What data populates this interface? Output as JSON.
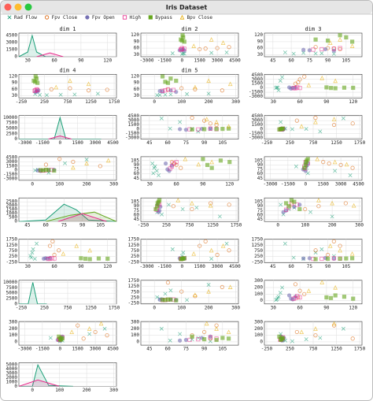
{
  "title": "Iris Dataset",
  "legend": [
    {
      "name": "Rad Flow",
      "color": "#1b9e77",
      "marker": "x"
    },
    {
      "name": "Fpv Close",
      "color": "#d95f02",
      "marker": "circle-open"
    },
    {
      "name": "Fpv Open",
      "color": "#7570b3",
      "marker": "circle"
    },
    {
      "name": "High",
      "color": "#e7298a",
      "marker": "square-open"
    },
    {
      "name": "Bypass",
      "color": "#66a61e",
      "marker": "square"
    },
    {
      "name": "Bpv Close",
      "color": "#e6ab02",
      "marker": "triangle-open"
    }
  ],
  "dims": [
    {
      "name": "dim 1",
      "lim": [
        20,
        130
      ],
      "ticks": [
        30,
        60,
        90,
        120
      ]
    },
    {
      "name": "dim 2",
      "lim": [
        -3500,
        4800
      ],
      "ticks": [
        -3000,
        -1500,
        0,
        1500,
        3000,
        4500
      ]
    },
    {
      "name": "dim 3",
      "lim": [
        38,
        118
      ],
      "ticks": [
        45,
        60,
        75,
        90,
        105
      ]
    },
    {
      "name": "dim 4",
      "lim": [
        -300,
        1800
      ],
      "ticks": [
        -250,
        250,
        750,
        1250,
        1750
      ]
    },
    {
      "name": "dim 5",
      "lim": [
        -50,
        310
      ],
      "ticks": [
        0,
        100,
        200,
        300
      ]
    }
  ],
  "density": [
    {
      "ylim": [
        0,
        5000
      ],
      "yticks": [
        0,
        1500,
        3000,
        4500
      ],
      "series": [
        {
          "class": 0,
          "x": [
            20,
            30,
            35,
            40,
            50,
            60
          ],
          "y": [
            0,
            1000,
            4500,
            1000,
            0,
            0
          ]
        },
        {
          "class": 3,
          "x": [
            40,
            55,
            70
          ],
          "y": [
            0,
            800,
            0
          ]
        }
      ]
    },
    {
      "ylim": [
        0,
        11000
      ],
      "yticks": [
        0,
        2500,
        5000,
        7500,
        10000
      ],
      "series": [
        {
          "class": 0,
          "x": [
            -3500,
            -500,
            0,
            500,
            3500
          ],
          "y": [
            0,
            0,
            10000,
            0,
            0
          ]
        },
        {
          "class": 3,
          "x": [
            -1000,
            0,
            1000
          ],
          "y": [
            0,
            1500,
            0
          ]
        }
      ]
    },
    {
      "ylim": [
        0,
        3000
      ],
      "yticks": [
        0,
        500,
        1000,
        1500,
        2000,
        2500
      ],
      "series": [
        {
          "class": 0,
          "x": [
            38,
            60,
            75,
            85,
            95,
            118
          ],
          "y": [
            0,
            200,
            2200,
            1500,
            200,
            0
          ]
        },
        {
          "class": 4,
          "x": [
            60,
            80,
            100,
            118
          ],
          "y": [
            0,
            800,
            1200,
            0
          ]
        },
        {
          "class": 3,
          "x": [
            70,
            90,
            110
          ],
          "y": [
            0,
            1000,
            0
          ]
        }
      ]
    },
    {
      "ylim": [
        0,
        11000
      ],
      "yticks": [
        0,
        2500,
        5000,
        7500,
        10000
      ],
      "series": [
        {
          "class": 0,
          "x": [
            -300,
            -100,
            0,
            100,
            300
          ],
          "y": [
            0,
            0,
            10000,
            0,
            0
          ]
        }
      ]
    },
    {
      "ylim": [
        0,
        5500
      ],
      "yticks": [
        0,
        1000,
        2000,
        3000,
        4000,
        5000
      ],
      "series": [
        {
          "class": 0,
          "x": [
            -50,
            0,
            20,
            60,
            150
          ],
          "y": [
            0,
            0,
            5000,
            200,
            0
          ]
        },
        {
          "class": 3,
          "x": [
            -50,
            20,
            100
          ],
          "y": [
            0,
            1500,
            0
          ]
        }
      ]
    }
  ],
  "observations": [
    {
      "class": 0,
      "values": [
        34,
        200,
        62,
        150,
        20
      ]
    },
    {
      "class": 0,
      "values": [
        36,
        -800,
        85,
        900,
        60
      ]
    },
    {
      "class": 0,
      "values": [
        38,
        2500,
        70,
        50,
        120
      ]
    },
    {
      "class": 0,
      "values": [
        33,
        0,
        95,
        300,
        10
      ]
    },
    {
      "class": 0,
      "values": [
        40,
        3800,
        55,
        1400,
        200
      ]
    },
    {
      "class": 0,
      "values": [
        35,
        100,
        80,
        600,
        40
      ]
    },
    {
      "class": 1,
      "values": [
        60,
        3000,
        90,
        400,
        150
      ]
    },
    {
      "class": 1,
      "values": [
        55,
        1500,
        100,
        1200,
        250
      ]
    },
    {
      "class": 1,
      "values": [
        65,
        4000,
        80,
        800,
        100
      ]
    },
    {
      "class": 1,
      "values": [
        58,
        2000,
        95,
        1600,
        50
      ]
    },
    {
      "class": 2,
      "values": [
        50,
        -200,
        75,
        100,
        30
      ]
    },
    {
      "class": 2,
      "values": [
        55,
        100,
        88,
        120,
        60
      ]
    },
    {
      "class": 2,
      "values": [
        52,
        0,
        70,
        80,
        20
      ]
    },
    {
      "class": 2,
      "values": [
        48,
        200,
        95,
        60,
        80
      ]
    },
    {
      "class": 3,
      "values": [
        55,
        -100,
        85,
        50,
        40
      ]
    },
    {
      "class": 3,
      "values": [
        57,
        200,
        95,
        100,
        70
      ]
    },
    {
      "class": 3,
      "values": [
        60,
        0,
        100,
        80,
        50
      ]
    },
    {
      "class": 3,
      "values": [
        53,
        -50,
        78,
        40,
        30
      ]
    },
    {
      "class": 4,
      "values": [
        95,
        0,
        90,
        50,
        40
      ]
    },
    {
      "class": 4,
      "values": [
        110,
        100,
        105,
        80,
        60
      ]
    },
    {
      "class": 4,
      "values": [
        100,
        -100,
        80,
        20,
        80
      ]
    },
    {
      "class": 4,
      "values": [
        120,
        50,
        100,
        60,
        30
      ]
    },
    {
      "class": 4,
      "values": [
        90,
        200,
        110,
        100,
        50
      ]
    },
    {
      "class": 5,
      "values": [
        100,
        2500,
        100,
        800,
        200
      ]
    },
    {
      "class": 5,
      "values": [
        85,
        3500,
        92,
        1200,
        280
      ]
    },
    {
      "class": 5,
      "values": [
        70,
        1000,
        110,
        500,
        150
      ]
    }
  ]
}
